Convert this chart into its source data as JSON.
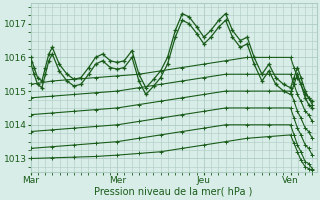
{
  "bg_color": "#d8ede8",
  "grid_color": "#aeccc4",
  "line_color": "#1a5c1a",
  "xlabel": "Pression niveau de la mer( hPa )",
  "xtick_labels": [
    "Mar",
    "Mer",
    "Jeu",
    "Ven"
  ],
  "xtick_positions": [
    0.0,
    1.0,
    2.0,
    3.0
  ],
  "ylim": [
    1012.6,
    1017.6
  ],
  "yticks": [
    1013,
    1014,
    1015,
    1016,
    1017
  ],
  "xlim": [
    0.0,
    3.3
  ],
  "series": [
    {
      "x": [
        0.0,
        0.04,
        0.08,
        0.13,
        0.17,
        0.21,
        0.25,
        0.33,
        0.42,
        0.5,
        0.58,
        0.67,
        0.75,
        0.83,
        0.92,
        1.0,
        1.08,
        1.17,
        1.25,
        1.33,
        1.42,
        1.5,
        1.58,
        1.67,
        1.75,
        1.83,
        1.92,
        2.0,
        2.08,
        2.17,
        2.25,
        2.33,
        2.42,
        2.5,
        2.58,
        2.67,
        2.75,
        2.83,
        2.92,
        3.0,
        3.04,
        3.08,
        3.12,
        3.17,
        3.21,
        3.25
      ],
      "y": [
        1016.0,
        1015.7,
        1015.4,
        1015.3,
        1015.7,
        1016.1,
        1016.3,
        1015.8,
        1015.5,
        1015.35,
        1015.4,
        1015.7,
        1016.0,
        1016.1,
        1015.9,
        1015.85,
        1015.9,
        1016.2,
        1015.5,
        1015.1,
        1015.35,
        1015.6,
        1016.0,
        1016.8,
        1017.3,
        1017.2,
        1016.9,
        1016.6,
        1016.8,
        1017.1,
        1017.3,
        1016.8,
        1016.5,
        1016.6,
        1016.0,
        1015.5,
        1015.8,
        1015.4,
        1015.2,
        1015.1,
        1015.4,
        1015.7,
        1015.4,
        1015.0,
        1014.8,
        1014.7
      ]
    },
    {
      "x": [
        0.0,
        0.04,
        0.08,
        0.13,
        0.17,
        0.21,
        0.25,
        0.33,
        0.42,
        0.5,
        0.58,
        0.67,
        0.75,
        0.83,
        0.92,
        1.0,
        1.08,
        1.17,
        1.25,
        1.33,
        1.42,
        1.5,
        1.58,
        1.67,
        1.75,
        1.83,
        1.92,
        2.0,
        2.08,
        2.17,
        2.25,
        2.33,
        2.42,
        2.5,
        2.58,
        2.67,
        2.75,
        2.83,
        2.92,
        3.0,
        3.04,
        3.08,
        3.12,
        3.17,
        3.21,
        3.25
      ],
      "y": [
        1015.85,
        1015.5,
        1015.2,
        1015.1,
        1015.5,
        1015.9,
        1016.1,
        1015.6,
        1015.3,
        1015.15,
        1015.2,
        1015.5,
        1015.8,
        1015.9,
        1015.7,
        1015.65,
        1015.7,
        1016.0,
        1015.3,
        1014.9,
        1015.15,
        1015.4,
        1015.8,
        1016.6,
        1017.1,
        1017.0,
        1016.7,
        1016.4,
        1016.6,
        1016.9,
        1017.1,
        1016.6,
        1016.3,
        1016.4,
        1015.8,
        1015.3,
        1015.6,
        1015.2,
        1015.0,
        1014.9,
        1015.2,
        1015.5,
        1015.2,
        1014.8,
        1014.6,
        1014.5
      ]
    },
    {
      "x": [
        0.0,
        0.25,
        0.5,
        0.75,
        1.0,
        1.25,
        1.5,
        1.75,
        2.0,
        2.25,
        2.5,
        2.75,
        3.0,
        3.04,
        3.08,
        3.12,
        3.17,
        3.21,
        3.25
      ],
      "y": [
        1015.2,
        1015.3,
        1015.35,
        1015.4,
        1015.45,
        1015.5,
        1015.6,
        1015.7,
        1015.8,
        1015.9,
        1016.0,
        1016.0,
        1016.0,
        1015.7,
        1015.4,
        1015.2,
        1014.9,
        1014.8,
        1014.6
      ]
    },
    {
      "x": [
        0.0,
        0.25,
        0.5,
        0.75,
        1.0,
        1.25,
        1.5,
        1.75,
        2.0,
        2.25,
        2.5,
        2.75,
        3.0,
        3.04,
        3.08,
        3.12,
        3.17,
        3.21,
        3.25
      ],
      "y": [
        1014.8,
        1014.85,
        1014.9,
        1014.95,
        1015.0,
        1015.1,
        1015.2,
        1015.3,
        1015.4,
        1015.5,
        1015.5,
        1015.5,
        1015.5,
        1015.2,
        1014.9,
        1014.7,
        1014.4,
        1014.3,
        1014.1
      ]
    },
    {
      "x": [
        0.0,
        0.25,
        0.5,
        0.75,
        1.0,
        1.25,
        1.5,
        1.75,
        2.0,
        2.25,
        2.5,
        2.75,
        3.0,
        3.04,
        3.08,
        3.12,
        3.17,
        3.21,
        3.25
      ],
      "y": [
        1014.3,
        1014.35,
        1014.4,
        1014.45,
        1014.5,
        1014.6,
        1014.7,
        1014.8,
        1014.9,
        1015.0,
        1015.0,
        1015.0,
        1015.0,
        1014.7,
        1014.4,
        1014.2,
        1013.9,
        1013.8,
        1013.6
      ]
    },
    {
      "x": [
        0.0,
        0.25,
        0.5,
        0.75,
        1.0,
        1.25,
        1.5,
        1.75,
        2.0,
        2.25,
        2.5,
        2.75,
        3.0,
        3.04,
        3.08,
        3.12,
        3.17,
        3.21,
        3.25
      ],
      "y": [
        1013.8,
        1013.85,
        1013.9,
        1013.95,
        1014.0,
        1014.1,
        1014.2,
        1014.3,
        1014.4,
        1014.5,
        1014.5,
        1014.5,
        1014.5,
        1014.2,
        1013.9,
        1013.7,
        1013.4,
        1013.3,
        1013.1
      ]
    },
    {
      "x": [
        0.0,
        0.25,
        0.5,
        0.75,
        1.0,
        1.25,
        1.5,
        1.75,
        2.0,
        2.25,
        2.5,
        2.75,
        3.0,
        3.04,
        3.08,
        3.12,
        3.17,
        3.21,
        3.25
      ],
      "y": [
        1013.3,
        1013.35,
        1013.4,
        1013.45,
        1013.5,
        1013.6,
        1013.7,
        1013.8,
        1013.9,
        1014.0,
        1014.0,
        1014.0,
        1014.0,
        1013.7,
        1013.4,
        1013.2,
        1012.9,
        1012.85,
        1012.7
      ]
    },
    {
      "x": [
        0.0,
        0.25,
        0.5,
        0.75,
        1.0,
        1.25,
        1.5,
        1.75,
        2.0,
        2.25,
        2.5,
        2.75,
        3.0,
        3.04,
        3.08,
        3.12,
        3.17,
        3.21,
        3.25
      ],
      "y": [
        1013.0,
        1013.02,
        1013.04,
        1013.06,
        1013.1,
        1013.15,
        1013.2,
        1013.3,
        1013.4,
        1013.5,
        1013.6,
        1013.65,
        1013.7,
        1013.45,
        1013.2,
        1012.95,
        1012.75,
        1012.7,
        1012.65
      ]
    }
  ]
}
